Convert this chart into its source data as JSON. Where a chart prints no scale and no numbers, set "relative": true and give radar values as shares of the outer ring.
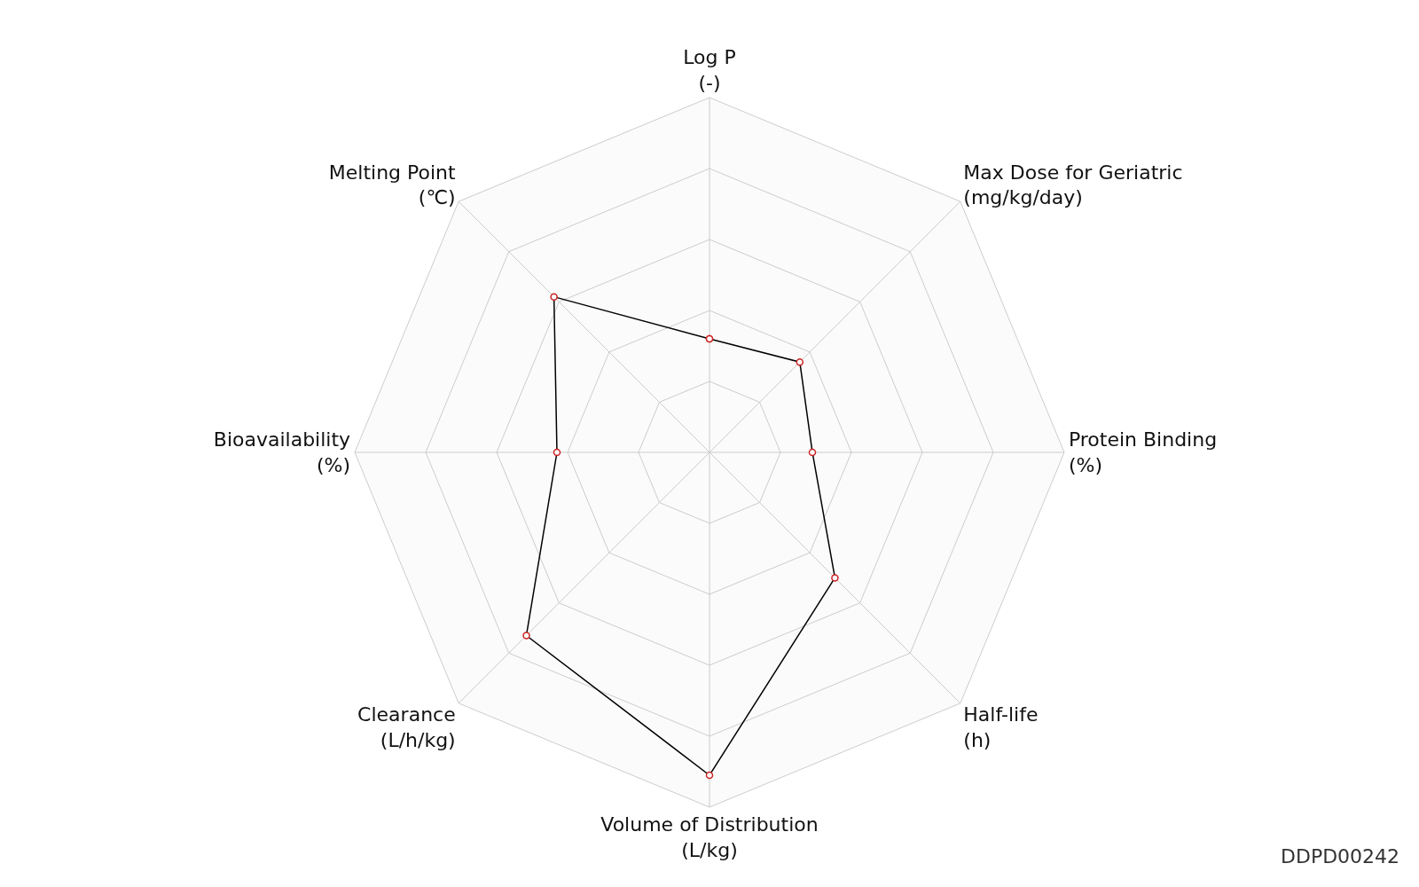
{
  "chart_data": {
    "type": "radar",
    "relative": true,
    "categories": [
      "Log P\n(-)",
      "Max Dose for Geriatric\n(mg/kg/day)",
      "Protein Binding\n(%)",
      "Half-life\n(h)",
      "Volume of Distribution\n(L/kg)",
      "Clearance\n(L/h/kg)",
      "Bioavailability\n(%)",
      "Melting Point\n(℃)"
    ],
    "series": [
      {
        "color": "#000000",
        "values": [
          0.32,
          0.36,
          0.29,
          0.5,
          0.91,
          0.73,
          0.43,
          0.62
        ]
      }
    ],
    "marker": "circle",
    "grid": true,
    "annotations": [
      "DDPD00242"
    ]
  }
}
